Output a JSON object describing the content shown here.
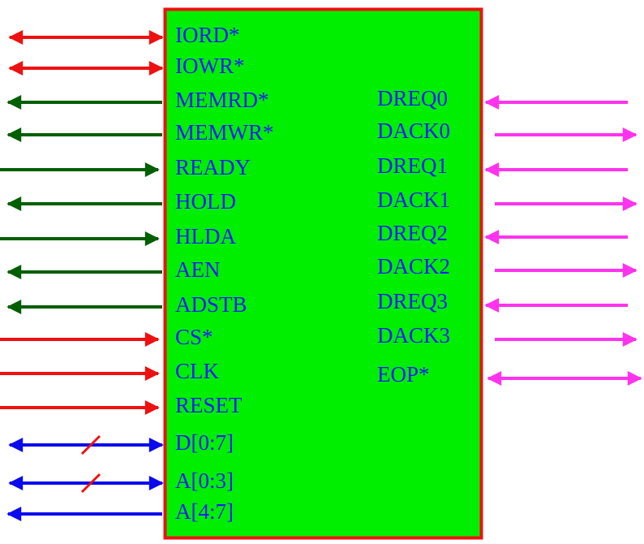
{
  "colors": {
    "chip_fill": "#00ee00",
    "chip_border": "#ee1111",
    "label": "#1a1aff",
    "red": "#ee1111",
    "green": "#005f00",
    "blue": "#0a0aee",
    "magenta": "#ff33ee"
  },
  "left_pins": [
    {
      "label": "IORD*",
      "color": "red",
      "arrow": "both"
    },
    {
      "label": "IOWR*",
      "color": "red",
      "arrow": "both"
    },
    {
      "label": "MEMRD*",
      "color": "green",
      "arrow": "out"
    },
    {
      "label": "MEMWR*",
      "color": "green",
      "arrow": "out"
    },
    {
      "label": "READY",
      "color": "green",
      "arrow": "in"
    },
    {
      "label": "HOLD",
      "color": "green",
      "arrow": "out"
    },
    {
      "label": "HLDA",
      "color": "green",
      "arrow": "in"
    },
    {
      "label": "AEN",
      "color": "green",
      "arrow": "out"
    },
    {
      "label": "ADSTB",
      "color": "green",
      "arrow": "out"
    },
    {
      "label": "CS*",
      "color": "red",
      "arrow": "in"
    },
    {
      "label": "CLK",
      "color": "red",
      "arrow": "in"
    },
    {
      "label": "RESET",
      "color": "red",
      "arrow": "in"
    },
    {
      "label": "D[0:7]",
      "color": "blue",
      "arrow": "both",
      "bus": true
    },
    {
      "label": "A[0:3]",
      "color": "blue",
      "arrow": "both",
      "bus": true
    },
    {
      "label": "A[4:7]",
      "color": "blue",
      "arrow": "out"
    }
  ],
  "right_pins": [
    {
      "label": "DREQ0",
      "color": "magenta",
      "arrow": "in"
    },
    {
      "label": "DACK0",
      "color": "magenta",
      "arrow": "out"
    },
    {
      "label": "DREQ1",
      "color": "magenta",
      "arrow": "in"
    },
    {
      "label": "DACK1",
      "color": "magenta",
      "arrow": "out"
    },
    {
      "label": "DREQ2",
      "color": "magenta",
      "arrow": "in"
    },
    {
      "label": "DACK2",
      "color": "magenta",
      "arrow": "out"
    },
    {
      "label": "DREQ3",
      "color": "magenta",
      "arrow": "in"
    },
    {
      "label": "DACK3",
      "color": "magenta",
      "arrow": "out"
    },
    {
      "label": "EOP*",
      "color": "magenta",
      "arrow": "both"
    }
  ]
}
